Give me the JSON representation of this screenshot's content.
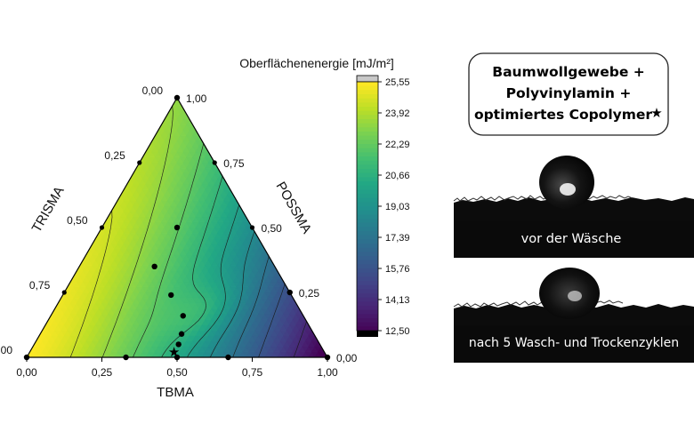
{
  "chart_data": {
    "type": "ternary-contour",
    "axes": {
      "bottom": {
        "label": "TBMA",
        "ticks": [
          "0,00",
          "0,25",
          "0,50",
          "0,75",
          "1,00"
        ]
      },
      "left": {
        "label": "TRISMA",
        "ticks": [
          "1,00",
          "0,75",
          "0,50",
          "0,25",
          "0,00"
        ]
      },
      "right": {
        "label": "POSSMA",
        "ticks": [
          "0,00",
          "0,25",
          "0,50",
          "0,75",
          "1,00"
        ]
      }
    },
    "colorbar": {
      "title": "Oberflächenenergie [mJ/m²]",
      "tick_labels": [
        "25,55",
        "23,92",
        "22,29",
        "20,66",
        "19,03",
        "17,39",
        "15,76",
        "14,13",
        "12,50"
      ],
      "min": 12.5,
      "max": 25.55,
      "colormap": "viridis",
      "over_color": "#c8c8c8",
      "under_color": "#000000"
    },
    "design_points": [
      {
        "TBMA": 0.0,
        "POSSMA": 0.0,
        "TRISMA": 1.0
      },
      {
        "TBMA": 0.0,
        "POSSMA": 1.0,
        "TRISMA": 0.0
      },
      {
        "TBMA": 1.0,
        "POSSMA": 0.0,
        "TRISMA": 0.0
      },
      {
        "TBMA": 0.25,
        "POSSMA": 0.5,
        "TRISMA": 0.25
      },
      {
        "TBMA": 0.5,
        "POSSMA": 0.0,
        "TRISMA": 0.5
      },
      {
        "TBMA": 0.75,
        "POSSMA": 0.25,
        "TRISMA": 0.0
      },
      {
        "TBMA": 0.33,
        "POSSMA": 0.0,
        "TRISMA": 0.67
      },
      {
        "TBMA": 0.67,
        "POSSMA": 0.0,
        "TRISMA": 0.33
      },
      {
        "TBMA": 0.25,
        "POSSMA": 0.35,
        "TRISMA": 0.4
      },
      {
        "TBMA": 0.36,
        "POSSMA": 0.24,
        "TRISMA": 0.4
      },
      {
        "TBMA": 0.44,
        "POSSMA": 0.16,
        "TRISMA": 0.4
      },
      {
        "TBMA": 0.47,
        "POSSMA": 0.09,
        "TRISMA": 0.44
      },
      {
        "TBMA": 0.48,
        "POSSMA": 0.05,
        "TRISMA": 0.47
      }
    ],
    "optimum_point": {
      "TBMA": 0.48,
      "POSSMA": 0.02,
      "TRISMA": 0.5
    },
    "contour_levels": [
      13.5,
      14.6,
      15.8,
      17.0,
      18.2,
      19.4,
      20.6,
      22.0,
      24.0
    ]
  },
  "callout": {
    "lines": [
      "Baumwollgewebe +",
      "Polyvinylamin +",
      "optimiertes Copolymer"
    ],
    "star": "★"
  },
  "photos": [
    {
      "caption": "vor der Wäsche"
    },
    {
      "caption": "nach 5 Wasch- und Trockenzyklen"
    }
  ],
  "colors": {
    "point": "#000000",
    "axis": "#000000",
    "contour": "#1a1a1a"
  }
}
